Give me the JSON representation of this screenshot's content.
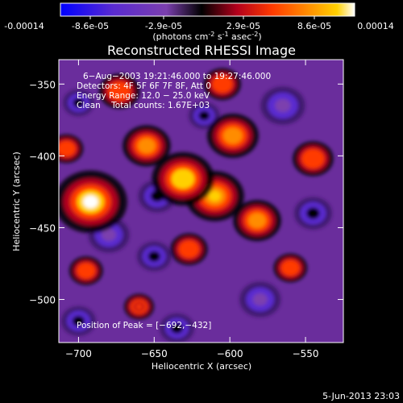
{
  "colors": {
    "background": "#000000",
    "axis": "#ffffff",
    "colorscale": [
      "#0000ff",
      "#5a2bd0",
      "#7b3fae",
      "#000000",
      "#b3001c",
      "#ff3a00",
      "#ff8c00",
      "#ffd000",
      "#ffffff"
    ]
  },
  "colorbar": {
    "tick_labels": [
      "-0.00014",
      "-8.6e-05",
      "-2.9e-05",
      "2.9e-05",
      "8.6e-05",
      "0.00014"
    ],
    "unit_label": "(photons cm",
    "unit_exp1": "-2",
    "unit_mid": " s",
    "unit_exp2": "-1",
    "unit_end": " asec",
    "unit_exp3": "-2",
    "unit_close": ")"
  },
  "chart_data": {
    "type": "heatmap",
    "title": "Reconstructed RHESSI Image",
    "xlabel": "Heliocentric X (arcsec)",
    "ylabel": "Heliocentric Y (arcsec)",
    "xlim": [
      -713,
      -525
    ],
    "ylim": [
      -530,
      -333
    ],
    "x_ticks": [
      -700,
      -650,
      -600,
      -550
    ],
    "x_tick_labels": [
      "−700",
      "−650",
      "−600",
      "−550"
    ],
    "y_ticks": [
      -350,
      -400,
      -450,
      -500
    ],
    "y_tick_labels": [
      "−350",
      "−400",
      "−450",
      "−500"
    ],
    "value_range": [
      -0.00014,
      0.00014
    ],
    "peak": [
      -692,
      -432
    ],
    "annotations": [
      "6−Aug−2003 19:21:46.000 to 19:27:46.000",
      "Detectors: 4F 5F 6F 7F 8F, Att 0",
      "Energy Range: 12.0 − 25.0 keV",
      "Clean    Total counts: 1.67E+03"
    ],
    "peak_label": "Position of Peak = [−692,−432]",
    "sources": [
      {
        "x": -692,
        "y": -432,
        "value": 0.00014
      },
      {
        "x": -631,
        "y": -416,
        "value": 0.00011
      },
      {
        "x": -610,
        "y": -428,
        "value": 0.0001
      },
      {
        "x": -598,
        "y": -386,
        "value": 8e-05
      },
      {
        "x": -655,
        "y": -393,
        "value": 7e-05
      },
      {
        "x": -582,
        "y": -445,
        "value": 7e-05
      },
      {
        "x": -673,
        "y": -355,
        "value": 5e-05
      },
      {
        "x": -545,
        "y": -402,
        "value": 5e-05
      },
      {
        "x": -627,
        "y": -465,
        "value": 4e-05
      },
      {
        "x": -695,
        "y": -480,
        "value": 3e-05
      },
      {
        "x": -560,
        "y": -478,
        "value": 3e-05
      },
      {
        "x": -605,
        "y": -350,
        "value": 4e-05
      },
      {
        "x": -708,
        "y": -395,
        "value": 3e-05
      },
      {
        "x": -660,
        "y": -505,
        "value": 2e-05
      },
      {
        "x": -565,
        "y": -365,
        "value": -7e-05
      },
      {
        "x": -680,
        "y": -455,
        "value": -6e-05
      },
      {
        "x": -648,
        "y": -428,
        "value": -5e-05
      },
      {
        "x": -580,
        "y": -500,
        "value": -6e-05
      },
      {
        "x": -700,
        "y": -515,
        "value": -4e-05
      },
      {
        "x": -635,
        "y": -520,
        "value": -4e-05
      },
      {
        "x": -545,
        "y": -440,
        "value": -5e-05
      },
      {
        "x": -617,
        "y": -372,
        "value": -3e-05
      },
      {
        "x": -700,
        "y": -363,
        "value": -3e-05
      },
      {
        "x": -650,
        "y": -470,
        "value": -4e-05
      }
    ]
  },
  "footer": {
    "date": "5-Jun-2013 23:03"
  }
}
